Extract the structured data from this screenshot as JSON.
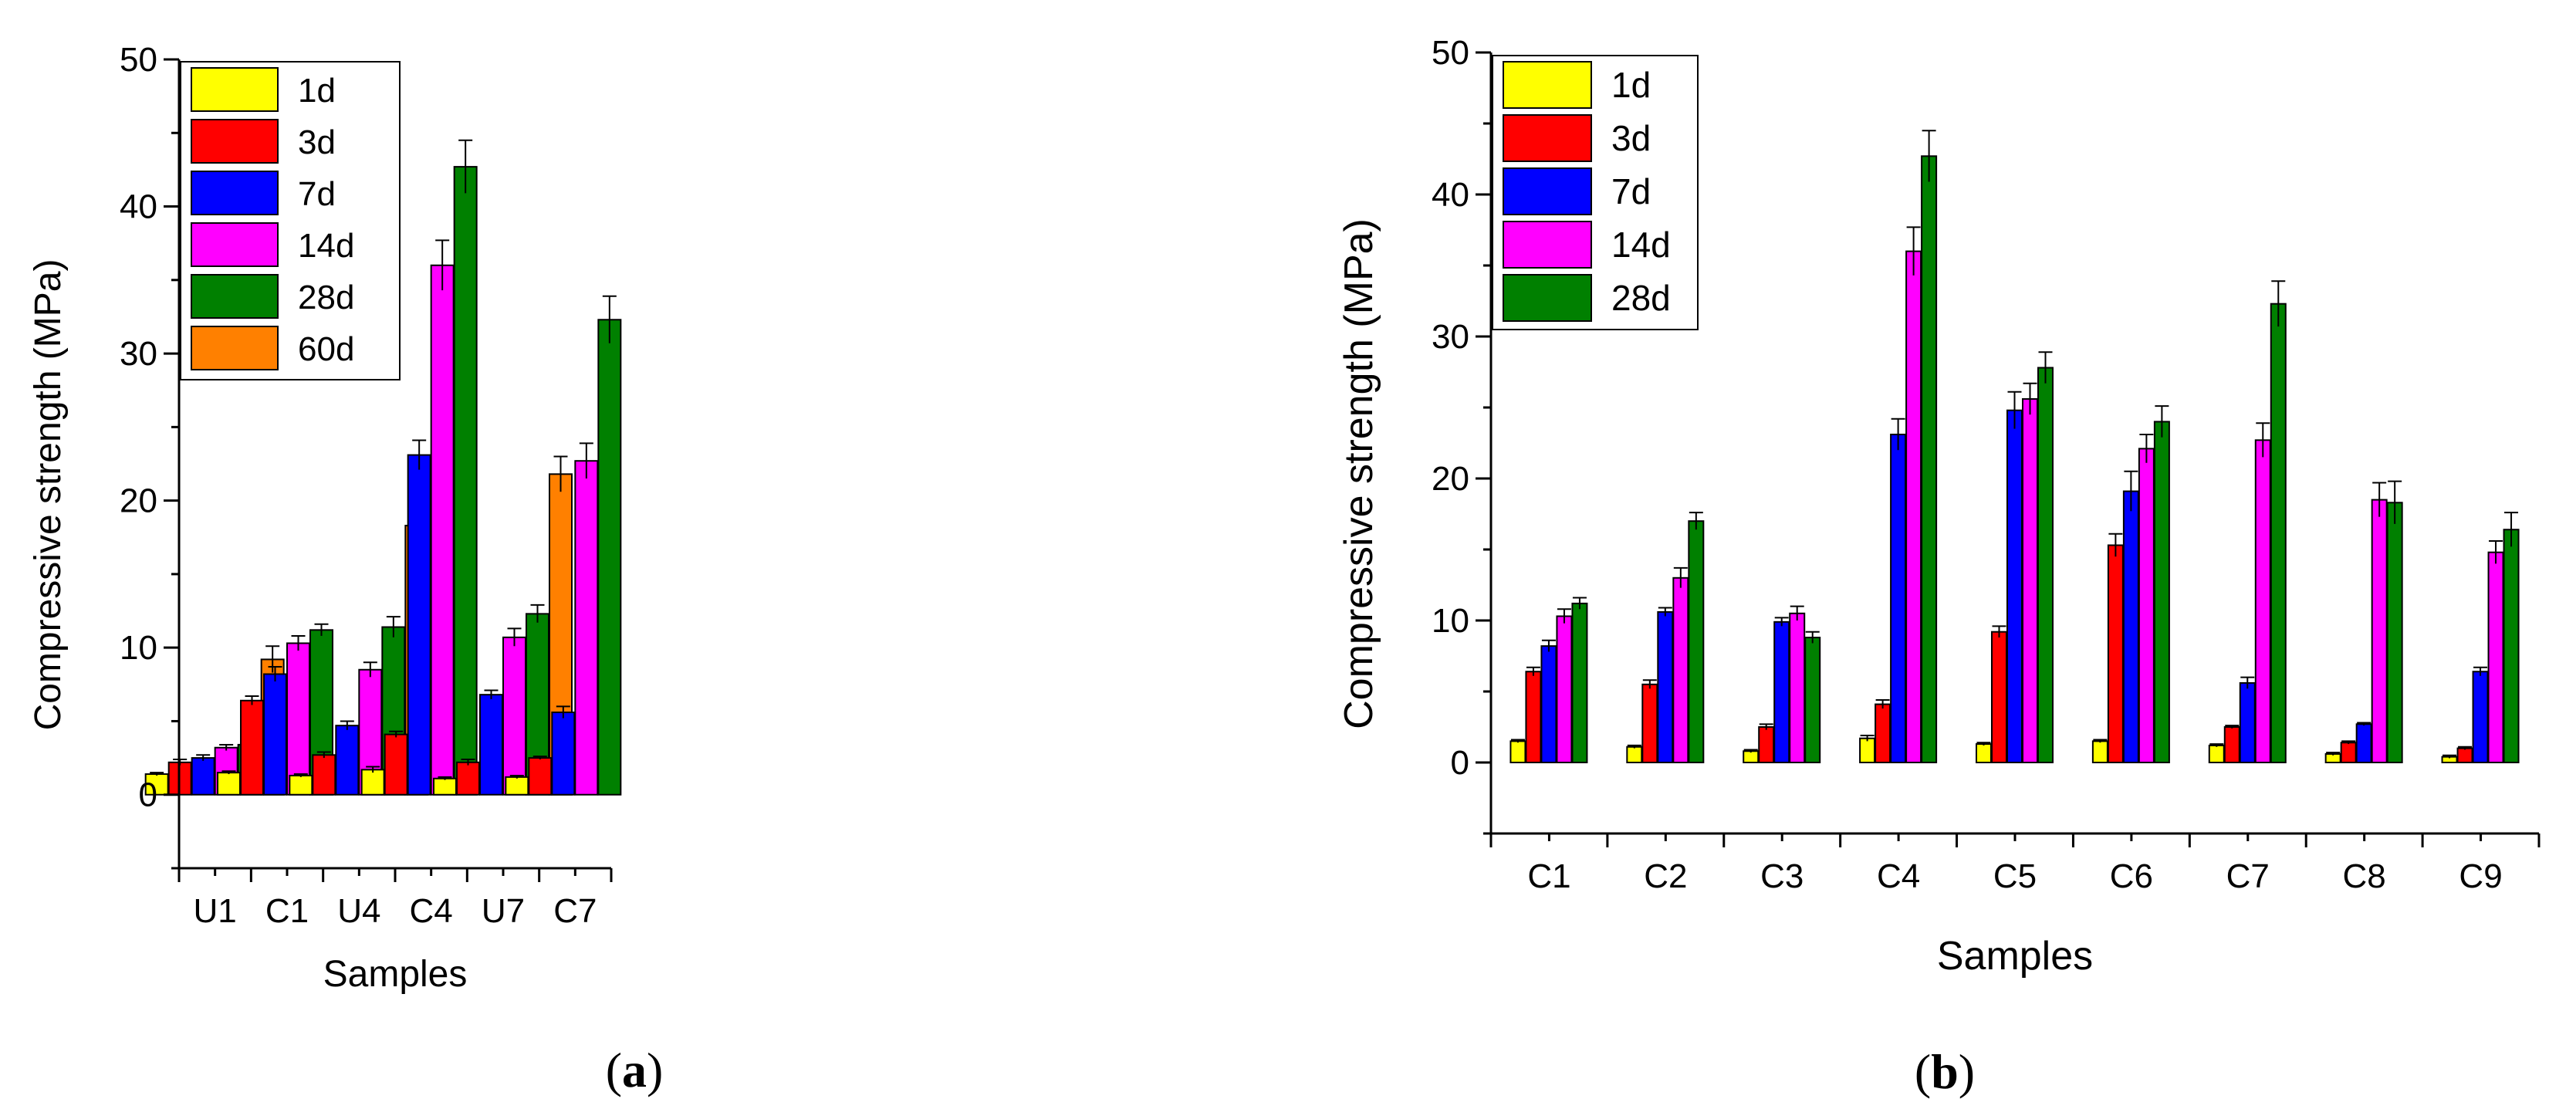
{
  "chart_data": [
    {
      "type": "bar",
      "panel_label": "a",
      "title": "",
      "xlabel": "Samples",
      "ylabel": "Compressive strength (MPa)",
      "ylim": [
        -5,
        50
      ],
      "yticks": [
        0,
        10,
        20,
        30,
        40,
        50
      ],
      "categories": [
        "U1",
        "C1",
        "U4",
        "C4",
        "U7",
        "C7"
      ],
      "legend_position": "top-left",
      "series": [
        {
          "name": "1d",
          "color": "#FFFF00",
          "values": [
            1.4,
            1.5,
            1.3,
            1.7,
            1.1,
            1.2
          ],
          "errors": [
            0.1,
            0.1,
            0.1,
            0.2,
            0.1,
            0.1
          ]
        },
        {
          "name": "3d",
          "color": "#FF0000",
          "values": [
            2.2,
            6.4,
            2.7,
            4.1,
            2.2,
            2.5
          ],
          "errors": [
            0.2,
            0.3,
            0.2,
            0.2,
            0.2,
            0.1
          ]
        },
        {
          "name": "7d",
          "color": "#0000FF",
          "values": [
            2.5,
            8.2,
            4.7,
            23.1,
            6.8,
            5.6
          ],
          "errors": [
            0.2,
            0.5,
            0.3,
            1.0,
            0.3,
            0.4
          ]
        },
        {
          "name": "14d",
          "color": "#FF00FF",
          "values": [
            3.2,
            10.3,
            8.5,
            36.0,
            10.7,
            22.7
          ],
          "errors": [
            0.2,
            0.5,
            0.5,
            1.7,
            0.6,
            1.2
          ]
        },
        {
          "name": "28d",
          "color": "#008000",
          "values": [
            3.4,
            11.2,
            11.4,
            42.7,
            12.3,
            32.3
          ],
          "errors": [
            0.3,
            0.4,
            0.7,
            1.8,
            0.6,
            1.6
          ]
        },
        {
          "name": "60d",
          "color": "#FF8000",
          "values": [
            9.2,
            null,
            18.3,
            null,
            21.8,
            null
          ],
          "errors": [
            0.9,
            null,
            1.4,
            null,
            1.2,
            null
          ]
        }
      ]
    },
    {
      "type": "bar",
      "panel_label": "b",
      "title": "",
      "xlabel": "Samples",
      "ylabel": "Compressive strength (MPa)",
      "ylim": [
        -5,
        50
      ],
      "yticks": [
        0,
        10,
        20,
        30,
        40,
        50
      ],
      "categories": [
        "C1",
        "C2",
        "C3",
        "C4",
        "C5",
        "C6",
        "C7",
        "C8",
        "C9"
      ],
      "legend_position": "top-left",
      "series": [
        {
          "name": "1d",
          "color": "#FFFF00",
          "values": [
            1.5,
            1.1,
            0.8,
            1.7,
            1.3,
            1.5,
            1.2,
            0.6,
            0.4
          ],
          "errors": [
            0.1,
            0.1,
            0.1,
            0.2,
            0.1,
            0.1,
            0.1,
            0.1,
            0.1
          ]
        },
        {
          "name": "3d",
          "color": "#FF0000",
          "values": [
            6.4,
            5.5,
            2.5,
            4.1,
            9.2,
            15.3,
            2.5,
            1.4,
            1.0
          ],
          "errors": [
            0.3,
            0.3,
            0.2,
            0.3,
            0.4,
            0.8,
            0.1,
            0.1,
            0.1
          ]
        },
        {
          "name": "7d",
          "color": "#0000FF",
          "values": [
            8.2,
            10.6,
            9.9,
            23.1,
            24.8,
            19.1,
            5.6,
            2.7,
            6.4
          ],
          "errors": [
            0.4,
            0.3,
            0.3,
            1.1,
            1.3,
            1.4,
            0.4,
            0.1,
            0.3
          ]
        },
        {
          "name": "14d",
          "color": "#FF00FF",
          "values": [
            10.3,
            13.0,
            10.5,
            36.0,
            25.6,
            22.1,
            22.7,
            18.5,
            14.8
          ],
          "errors": [
            0.5,
            0.7,
            0.5,
            1.7,
            1.1,
            1.0,
            1.2,
            1.2,
            0.8
          ]
        },
        {
          "name": "28d",
          "color": "#008000",
          "values": [
            11.2,
            17.0,
            8.8,
            42.7,
            27.8,
            24.0,
            32.3,
            18.3,
            16.4
          ],
          "errors": [
            0.4,
            0.6,
            0.4,
            1.8,
            1.1,
            1.1,
            1.6,
            1.5,
            1.2
          ]
        }
      ]
    }
  ]
}
